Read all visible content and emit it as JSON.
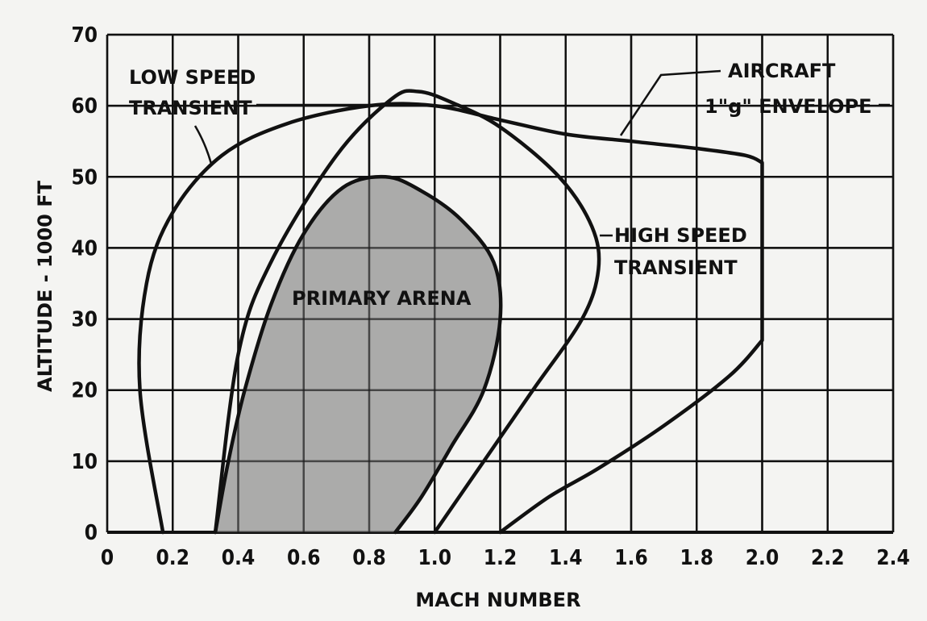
{
  "chart_data": {
    "type": "area",
    "xlabel": "MACH NUMBER",
    "ylabel": "ALTITUDE - 1000 FT",
    "xlim": [
      0,
      2.4
    ],
    "ylim": [
      0,
      70
    ],
    "x_ticks": [
      "0",
      "0.2",
      "0.4",
      "0.6",
      "0.8",
      "1.0",
      "1.2",
      "1.4",
      "1.6",
      "1.8",
      "2.0",
      "2.2",
      "2.4"
    ],
    "y_ticks": [
      "0",
      "10",
      "20",
      "30",
      "40",
      "50",
      "60",
      "70"
    ],
    "grid": true,
    "annotations": [
      {
        "id": "low",
        "lines": [
          "LOW SPEED",
          "TRANSIENT"
        ]
      },
      {
        "id": "aircraft",
        "lines": [
          "AIRCRAFT",
          "1\"g\" ENVELOPE"
        ]
      },
      {
        "id": "high",
        "lines": [
          "HIGH SPEED",
          "TRANSIENT"
        ]
      },
      {
        "id": "arena",
        "lines": [
          "PRIMARY ARENA"
        ]
      }
    ],
    "series": [
      {
        "key": "aircraft_envelope",
        "points": [
          [
            0.17,
            0
          ],
          [
            0.1,
            20
          ],
          [
            0.12,
            35
          ],
          [
            0.2,
            45
          ],
          [
            0.35,
            53
          ],
          [
            0.55,
            57.5
          ],
          [
            0.8,
            60
          ],
          [
            1.0,
            60
          ],
          [
            1.2,
            58
          ],
          [
            1.4,
            56
          ],
          [
            1.6,
            55
          ],
          [
            1.8,
            54
          ],
          [
            1.95,
            53
          ],
          [
            2.0,
            52
          ],
          [
            2.0,
            27
          ],
          [
            1.9,
            22
          ],
          [
            1.7,
            15
          ],
          [
            1.5,
            9
          ],
          [
            1.35,
            5
          ],
          [
            1.2,
            0
          ]
        ]
      },
      {
        "key": "low_speed_transient",
        "points": [
          [
            0.17,
            0
          ],
          [
            0.1,
            20
          ],
          [
            0.12,
            35
          ],
          [
            0.2,
            45
          ],
          [
            0.35,
            53
          ],
          [
            0.55,
            57.5
          ],
          [
            0.8,
            60
          ],
          [
            0.87,
            60
          ]
        ]
      },
      {
        "key": "high_speed_transient",
        "points": [
          [
            0.33,
            0
          ],
          [
            0.4,
            25
          ],
          [
            0.5,
            38
          ],
          [
            0.7,
            53
          ],
          [
            0.87,
            61
          ],
          [
            0.95,
            62
          ],
          [
            1.05,
            60.5
          ],
          [
            1.2,
            57
          ],
          [
            1.38,
            50
          ],
          [
            1.48,
            43
          ],
          [
            1.5,
            37
          ],
          [
            1.45,
            30
          ],
          [
            1.3,
            20
          ],
          [
            1.15,
            10
          ],
          [
            1.0,
            0
          ]
        ]
      },
      {
        "key": "primary_arena",
        "fill": "#9e9e9e",
        "points": [
          [
            0.33,
            0
          ],
          [
            0.37,
            10
          ],
          [
            0.42,
            20
          ],
          [
            0.5,
            32
          ],
          [
            0.6,
            42
          ],
          [
            0.72,
            48.5
          ],
          [
            0.85,
            50
          ],
          [
            0.96,
            48
          ],
          [
            1.08,
            44
          ],
          [
            1.18,
            38
          ],
          [
            1.2,
            30
          ],
          [
            1.15,
            20
          ],
          [
            1.05,
            12
          ],
          [
            0.96,
            5
          ],
          [
            0.88,
            0
          ]
        ]
      }
    ]
  }
}
